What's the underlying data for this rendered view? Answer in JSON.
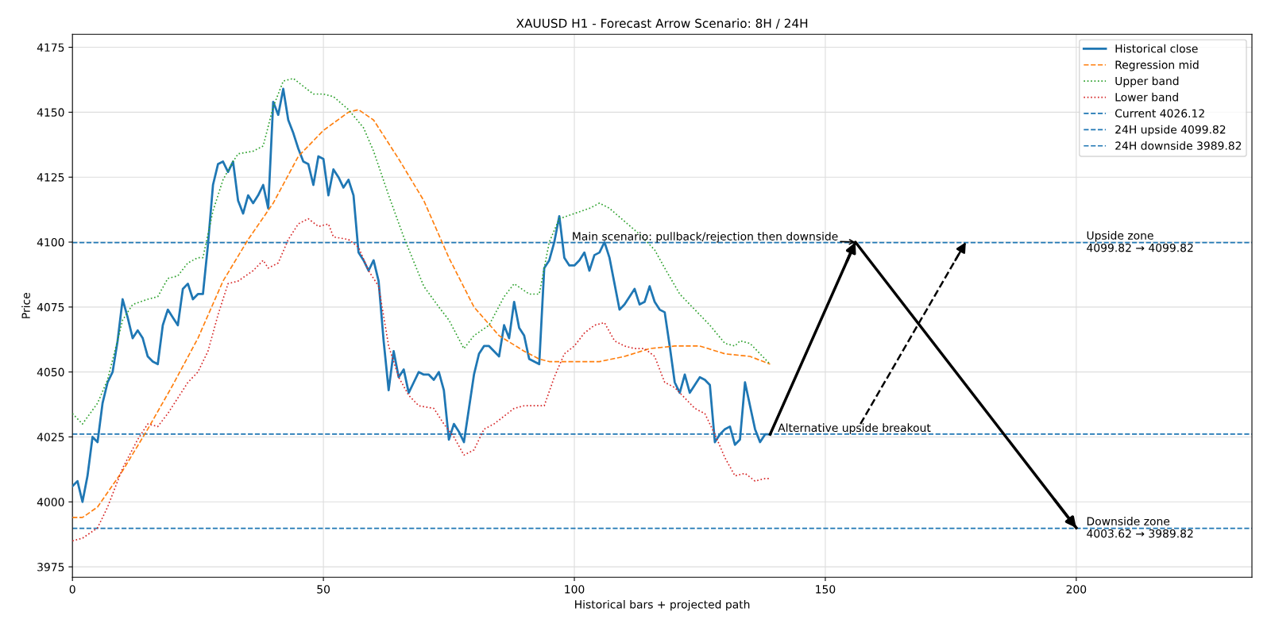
{
  "chart_data": {
    "type": "line",
    "title": "XAUUSD H1 - Forecast Arrow Scenario: 8H / 24H",
    "xlabel": "Historical bars + projected path",
    "ylabel": "Price",
    "xlim": [
      0,
      235
    ],
    "ylim": [
      3971,
      4180
    ],
    "xticks": [
      0,
      50,
      100,
      150,
      200
    ],
    "yticks": [
      3975,
      4000,
      4025,
      4050,
      4075,
      4100,
      4125,
      4150,
      4175
    ],
    "grid": true,
    "legend": "top right",
    "series": [
      {
        "name": "Historical close",
        "color": "#1f77b4",
        "line_style": "solid",
        "x": [
          0,
          1,
          2,
          3,
          4,
          5,
          6,
          7,
          8,
          9,
          10,
          11,
          12,
          13,
          14,
          15,
          16,
          17,
          18,
          19,
          20,
          21,
          22,
          23,
          24,
          25,
          26,
          27,
          28,
          29,
          30,
          31,
          32,
          33,
          34,
          35,
          36,
          37,
          38,
          39,
          40,
          41,
          42,
          43,
          44,
          45,
          46,
          47,
          48,
          49,
          50,
          51,
          52,
          53,
          54,
          55,
          56,
          57,
          58,
          59,
          60,
          61,
          62,
          63,
          64,
          65,
          66,
          67,
          68,
          69,
          70,
          71,
          72,
          73,
          74,
          75,
          76,
          77,
          78,
          79,
          80,
          81,
          82,
          83,
          84,
          85,
          86,
          87,
          88,
          89,
          90,
          91,
          92,
          93,
          94,
          95,
          96,
          97,
          98,
          99,
          100,
          101,
          102,
          103,
          104,
          105,
          106,
          107,
          108,
          109,
          110,
          111,
          112,
          113,
          114,
          115,
          116,
          117,
          118,
          119,
          120,
          121,
          122,
          123,
          124,
          125,
          126,
          127,
          128,
          129,
          130,
          131,
          132,
          133,
          134,
          135,
          136,
          137,
          138,
          139
        ],
        "values": [
          4006,
          4008,
          4000,
          4010,
          4025,
          4023,
          4038,
          4046,
          4050,
          4062,
          4078,
          4071,
          4063,
          4066,
          4063,
          4056,
          4054,
          4053,
          4068,
          4074,
          4071,
          4068,
          4082,
          4084,
          4078,
          4080,
          4080,
          4099,
          4122,
          4130,
          4131,
          4127,
          4131,
          4116,
          4111,
          4118,
          4115,
          4118,
          4122,
          4113,
          4154,
          4149,
          4159,
          4147,
          4142,
          4136,
          4131,
          4130,
          4122,
          4133,
          4132,
          4118,
          4128,
          4125,
          4121,
          4124,
          4118,
          4096,
          4093,
          4089,
          4093,
          4085,
          4062,
          4043,
          4058,
          4048,
          4051,
          4042,
          4046,
          4050,
          4049,
          4049,
          4047,
          4050,
          4043,
          4024,
          4030,
          4027,
          4023,
          4036,
          4049,
          4057,
          4060,
          4060,
          4058,
          4056,
          4068,
          4063,
          4077,
          4067,
          4064,
          4055,
          4054,
          4053,
          4090,
          4093,
          4100,
          4110,
          4094,
          4091,
          4091,
          4093,
          4096,
          4089,
          4095,
          4096,
          4100,
          4094,
          4084,
          4074,
          4076,
          4079,
          4082,
          4076,
          4077,
          4083,
          4077,
          4074,
          4073,
          4060,
          4046,
          4042,
          4049,
          4042,
          4045,
          4048,
          4047,
          4045,
          4023,
          4026,
          4028,
          4029,
          4022,
          4024,
          4046,
          4037,
          4028,
          4023,
          4026,
          4026
        ]
      },
      {
        "name": "Regression mid",
        "color": "#ff7f0e",
        "line_style": "dashed",
        "x": [
          0,
          2,
          5,
          10,
          15,
          20,
          25,
          30,
          35,
          40,
          45,
          50,
          55,
          57,
          60,
          65,
          70,
          75,
          80,
          85,
          90,
          93,
          95,
          100,
          105,
          110,
          115,
          120,
          125,
          130,
          135,
          139
        ],
        "values": [
          3994,
          3994,
          3998,
          4012,
          4028,
          4045,
          4063,
          4085,
          4101,
          4115,
          4133,
          4143,
          4150,
          4151,
          4147,
          4132,
          4116,
          4094,
          4075,
          4064,
          4058,
          4055,
          4054,
          4054,
          4054,
          4056,
          4059,
          4060,
          4060,
          4057,
          4056,
          4053
        ]
      },
      {
        "name": "Upper band",
        "color": "#2ca02c",
        "line_style": "dotted",
        "x": [
          0,
          2,
          5,
          7,
          10,
          12,
          15,
          17,
          19,
          21,
          23,
          25,
          26,
          28,
          30,
          32,
          33,
          36,
          38,
          40,
          42,
          44,
          46,
          48,
          50,
          52,
          55,
          58,
          60,
          63,
          66,
          70,
          73,
          75,
          78,
          80,
          83,
          86,
          88,
          91,
          93,
          95,
          97,
          100,
          103,
          105,
          107,
          110,
          113,
          116,
          118,
          121,
          124,
          127,
          130,
          132,
          133,
          135,
          137,
          139
        ],
        "values": [
          4034,
          4030,
          4038,
          4047,
          4070,
          4076,
          4078,
          4079,
          4086,
          4087,
          4092,
          4094,
          4094,
          4112,
          4124,
          4131,
          4134,
          4135,
          4137,
          4152,
          4162,
          4163,
          4160,
          4157,
          4157,
          4156,
          4151,
          4144,
          4135,
          4118,
          4102,
          4083,
          4075,
          4070,
          4059,
          4064,
          4068,
          4079,
          4084,
          4080,
          4080,
          4100,
          4109,
          4111,
          4113,
          4115,
          4113,
          4108,
          4103,
          4097,
          4090,
          4080,
          4074,
          4068,
          4061,
          4060,
          4062,
          4061,
          4057,
          4053
        ]
      },
      {
        "name": "Lower band",
        "color": "#d62728",
        "line_style": "dotted",
        "x": [
          0,
          2,
          5,
          7,
          10,
          13,
          15,
          17,
          19,
          21,
          23,
          25,
          27,
          29,
          31,
          33,
          36,
          38,
          39,
          41,
          43,
          45,
          47,
          49,
          51,
          52,
          55,
          57,
          59,
          61,
          63,
          65,
          67,
          69,
          72,
          74,
          76,
          78,
          80,
          82,
          84,
          86,
          88,
          90,
          92,
          94,
          96,
          98,
          100,
          102,
          104,
          106,
          108,
          110,
          112,
          114,
          116,
          118,
          120,
          122,
          124,
          126,
          128,
          130,
          132,
          134,
          136,
          138,
          139
        ],
        "values": [
          3985,
          3986,
          3990,
          3998,
          4013,
          4024,
          4030,
          4029,
          4034,
          4040,
          4046,
          4050,
          4058,
          4072,
          4084,
          4085,
          4089,
          4093,
          4090,
          4092,
          4101,
          4107,
          4109,
          4106,
          4107,
          4102,
          4101,
          4098,
          4089,
          4083,
          4060,
          4048,
          4041,
          4037,
          4036,
          4030,
          4025,
          4018,
          4020,
          4028,
          4030,
          4033,
          4036,
          4037,
          4037,
          4037,
          4048,
          4057,
          4060,
          4065,
          4068,
          4069,
          4062,
          4060,
          4059,
          4059,
          4056,
          4046,
          4044,
          4040,
          4036,
          4034,
          4026,
          4017,
          4010,
          4011,
          4008,
          4009,
          4009
        ]
      },
      {
        "color": "#000000",
        "line_style": "solid",
        "x": [
          139,
          156,
          200
        ],
        "values": [
          4026,
          4100,
          3990
        ]
      },
      {
        "color": "#000000",
        "line_style": "dashed",
        "x": [
          157,
          178
        ],
        "values": [
          4030,
          4100
        ]
      }
    ],
    "ref_lines": [
      {
        "axis": "y",
        "value": 4026.12,
        "label": "Current 4026.12",
        "color": "#1f77b4",
        "line_style": "dashed"
      },
      {
        "axis": "y",
        "value": 4099.82,
        "label": "24H upside 4099.82",
        "color": "#1f77b4",
        "line_style": "dashed"
      },
      {
        "axis": "y",
        "value": 3989.82,
        "label": "24H downside 3989.82",
        "color": "#1f77b4",
        "line_style": "dashed"
      }
    ],
    "annotations": [
      {
        "text": "Main scenario: pullback/rejection then downside",
        "x": 99.5,
        "y": 4099.82
      },
      {
        "text": "Alternative upside breakout",
        "x": 139,
        "y": 4026.12
      },
      {
        "text": "Upside zone\n4099.82 → 4099.82",
        "x": 202,
        "y": 4099.82
      },
      {
        "text": "Downside zone\n4003.62 → 3989.82",
        "x": 202,
        "y": 3989.82
      }
    ]
  }
}
